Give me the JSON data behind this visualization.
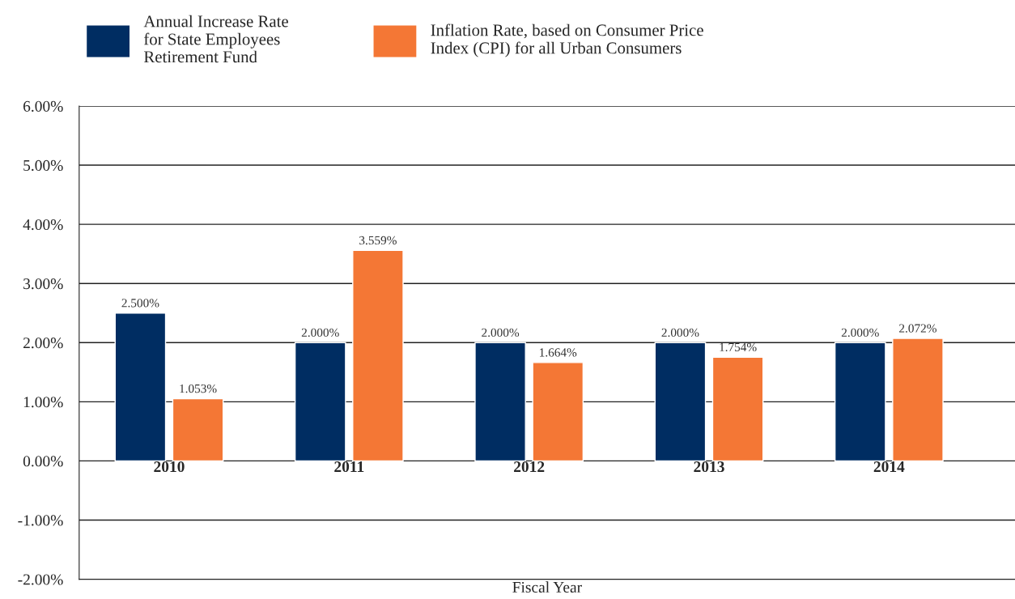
{
  "chart_data": {
    "type": "bar",
    "xlabel": "Fiscal Year",
    "categories": [
      "2010",
      "2011",
      "2012",
      "2013",
      "2014"
    ],
    "series": [
      {
        "name": "Annual Increase Rate\nfor State Employees\nRetirement Fund",
        "color": "#002d62",
        "values": [
          2.5,
          2.0,
          2.0,
          2.0,
          2.0
        ],
        "value_labels": [
          "2.500%",
          "2.000%",
          "2.000%",
          "2.000%",
          "2.000%"
        ]
      },
      {
        "name": "Inflation Rate, based on Consumer Price\nIndex (CPI) for all Urban Consumers",
        "color": "#f47735",
        "values": [
          1.053,
          3.559,
          1.664,
          1.754,
          2.072
        ],
        "value_labels": [
          "1.053%",
          "3.559%",
          "1.664%",
          "1.754%",
          "2.072%"
        ]
      }
    ],
    "ylim": [
      -2,
      6
    ],
    "yticks": [
      {
        "value": -2,
        "label": "-2.00%"
      },
      {
        "value": -1,
        "label": "-1.00%"
      },
      {
        "value": 0,
        "label": "0.00%"
      },
      {
        "value": 1,
        "label": "1.00%"
      },
      {
        "value": 2,
        "label": "2.00%"
      },
      {
        "value": 3,
        "label": "3.00%"
      },
      {
        "value": 4,
        "label": "4.00%"
      },
      {
        "value": 5,
        "label": "5.00%"
      },
      {
        "value": 6,
        "label": "6.00%"
      }
    ],
    "grid": "y",
    "legend": "top"
  }
}
